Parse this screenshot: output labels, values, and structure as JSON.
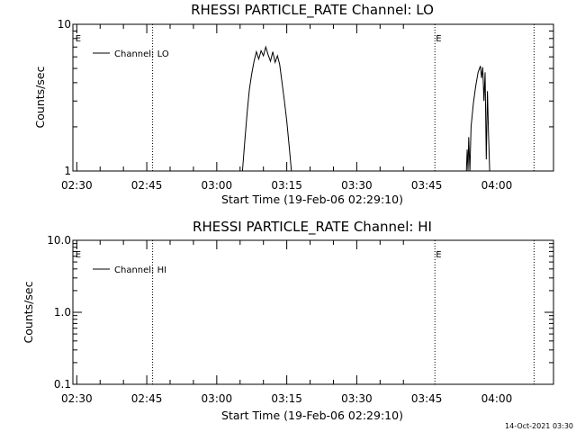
{
  "chart_data": [
    {
      "type": "line",
      "title": "RHESSI PARTICLE_RATE Channel: LO",
      "xlabel": "Start Time (19-Feb-06 02:29:10)",
      "ylabel": "Counts/sec",
      "x_tick_labels": [
        "02:30",
        "02:45",
        "03:00",
        "03:15",
        "03:30",
        "03:45",
        "04:00"
      ],
      "y_scale": "log",
      "ylim": [
        1,
        10
      ],
      "y_tick_labels": [
        "1",
        "10"
      ],
      "legend": {
        "placement": "top-left",
        "entries": [
          "Channel: LO"
        ]
      },
      "event_markers": [
        {
          "label": "E",
          "time": "02:29:30"
        },
        {
          "label": "E",
          "time": "03:46:45"
        }
      ],
      "dotted_lines": [
        "02:46:15",
        "03:46:45",
        "04:08:00"
      ],
      "series": [
        {
          "name": "Channel: LO",
          "segments": [
            {
              "x": [
                "03:05:30",
                "03:06:00",
                "03:06:30",
                "03:07:00",
                "03:07:30",
                "03:08:00",
                "03:08:30",
                "03:09:00",
                "03:09:30",
                "03:10:00",
                "03:10:30",
                "03:11:00",
                "03:11:30",
                "03:12:00",
                "03:12:30",
                "03:13:00",
                "03:13:30",
                "03:14:00",
                "03:14:30",
                "03:15:00",
                "03:15:30",
                "03:16:00"
              ],
              "y": [
                1.0,
                1.6,
                2.5,
                3.6,
                4.6,
                5.6,
                6.5,
                5.8,
                6.6,
                6.1,
                7.0,
                6.2,
                5.6,
                6.5,
                5.5,
                6.1,
                5.3,
                4.0,
                3.0,
                2.2,
                1.5,
                1.0
              ]
            },
            {
              "x": [
                "03:53:30",
                "03:53:40",
                "03:53:50",
                "03:54:00",
                "03:54:15",
                "03:54:30",
                "03:55:00",
                "03:55:30",
                "03:56:00",
                "03:56:30",
                "03:56:45",
                "03:57:00",
                "03:57:15",
                "03:57:30",
                "03:57:45",
                "03:58:00",
                "03:58:15",
                "03:58:30"
              ],
              "y": [
                1.0,
                1.4,
                1.0,
                1.7,
                1.0,
                2.0,
                2.9,
                3.8,
                4.7,
                5.2,
                4.3,
                5.1,
                3.0,
                4.7,
                1.2,
                3.5,
                1.8,
                1.0
              ]
            }
          ]
        }
      ]
    },
    {
      "type": "line",
      "title": "RHESSI PARTICLE_RATE Channel: HI",
      "xlabel": "Start Time (19-Feb-06 02:29:10)",
      "ylabel": "Counts/sec",
      "x_tick_labels": [
        "02:30",
        "02:45",
        "03:00",
        "03:15",
        "03:30",
        "03:45",
        "04:00"
      ],
      "y_scale": "log",
      "ylim": [
        0.1,
        10
      ],
      "y_tick_labels": [
        "0.1",
        "1.0",
        "10.0"
      ],
      "legend": {
        "placement": "top-left",
        "entries": [
          "Channel: HI"
        ]
      },
      "event_markers": [
        {
          "label": "E",
          "time": "02:29:30"
        },
        {
          "label": "E",
          "time": "03:46:45"
        }
      ],
      "dotted_lines": [
        "02:46:15",
        "03:46:45",
        "04:08:00"
      ],
      "series": [
        {
          "name": "Channel: HI",
          "segments": []
        }
      ]
    }
  ],
  "footer": {
    "timestamp": "14-Oct-2021 03:30"
  }
}
